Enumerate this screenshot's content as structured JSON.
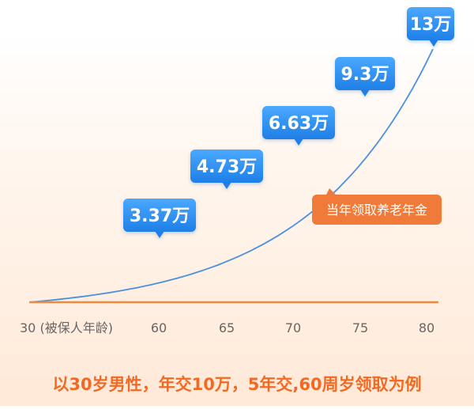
{
  "caption": "以30岁男性，年交10万，5年交,60周岁领取为例",
  "colors": {
    "curve": "#4a90e2",
    "baseline": "#f08a3c",
    "bubble_top": "#4aa8ff",
    "bubble_bottom": "#1f7ee6",
    "legend_bg": "#f07a3a",
    "tick_text": "#666666",
    "caption": "#f26a22"
  },
  "chart_data": {
    "type": "line",
    "x": [
      60,
      65,
      70,
      75,
      80
    ],
    "values": [
      3.37,
      4.73,
      6.63,
      9.3,
      13
    ],
    "value_labels": [
      "3.37万",
      "4.73万",
      "6.63万",
      "9.3万",
      "13万"
    ],
    "series": [
      {
        "name": "当年领取养老年金",
        "values": [
          3.37,
          4.73,
          6.63,
          9.3,
          13
        ]
      }
    ],
    "x_tick_labels": [
      "30 (被保人年龄)",
      "60",
      "65",
      "70",
      "75",
      "80"
    ],
    "x_ticks": [
      30,
      60,
      65,
      70,
      75,
      80
    ],
    "xlim": [
      30,
      80
    ],
    "ylim": [
      0,
      13
    ],
    "grid": false,
    "legend": "当年领取养老年金"
  }
}
